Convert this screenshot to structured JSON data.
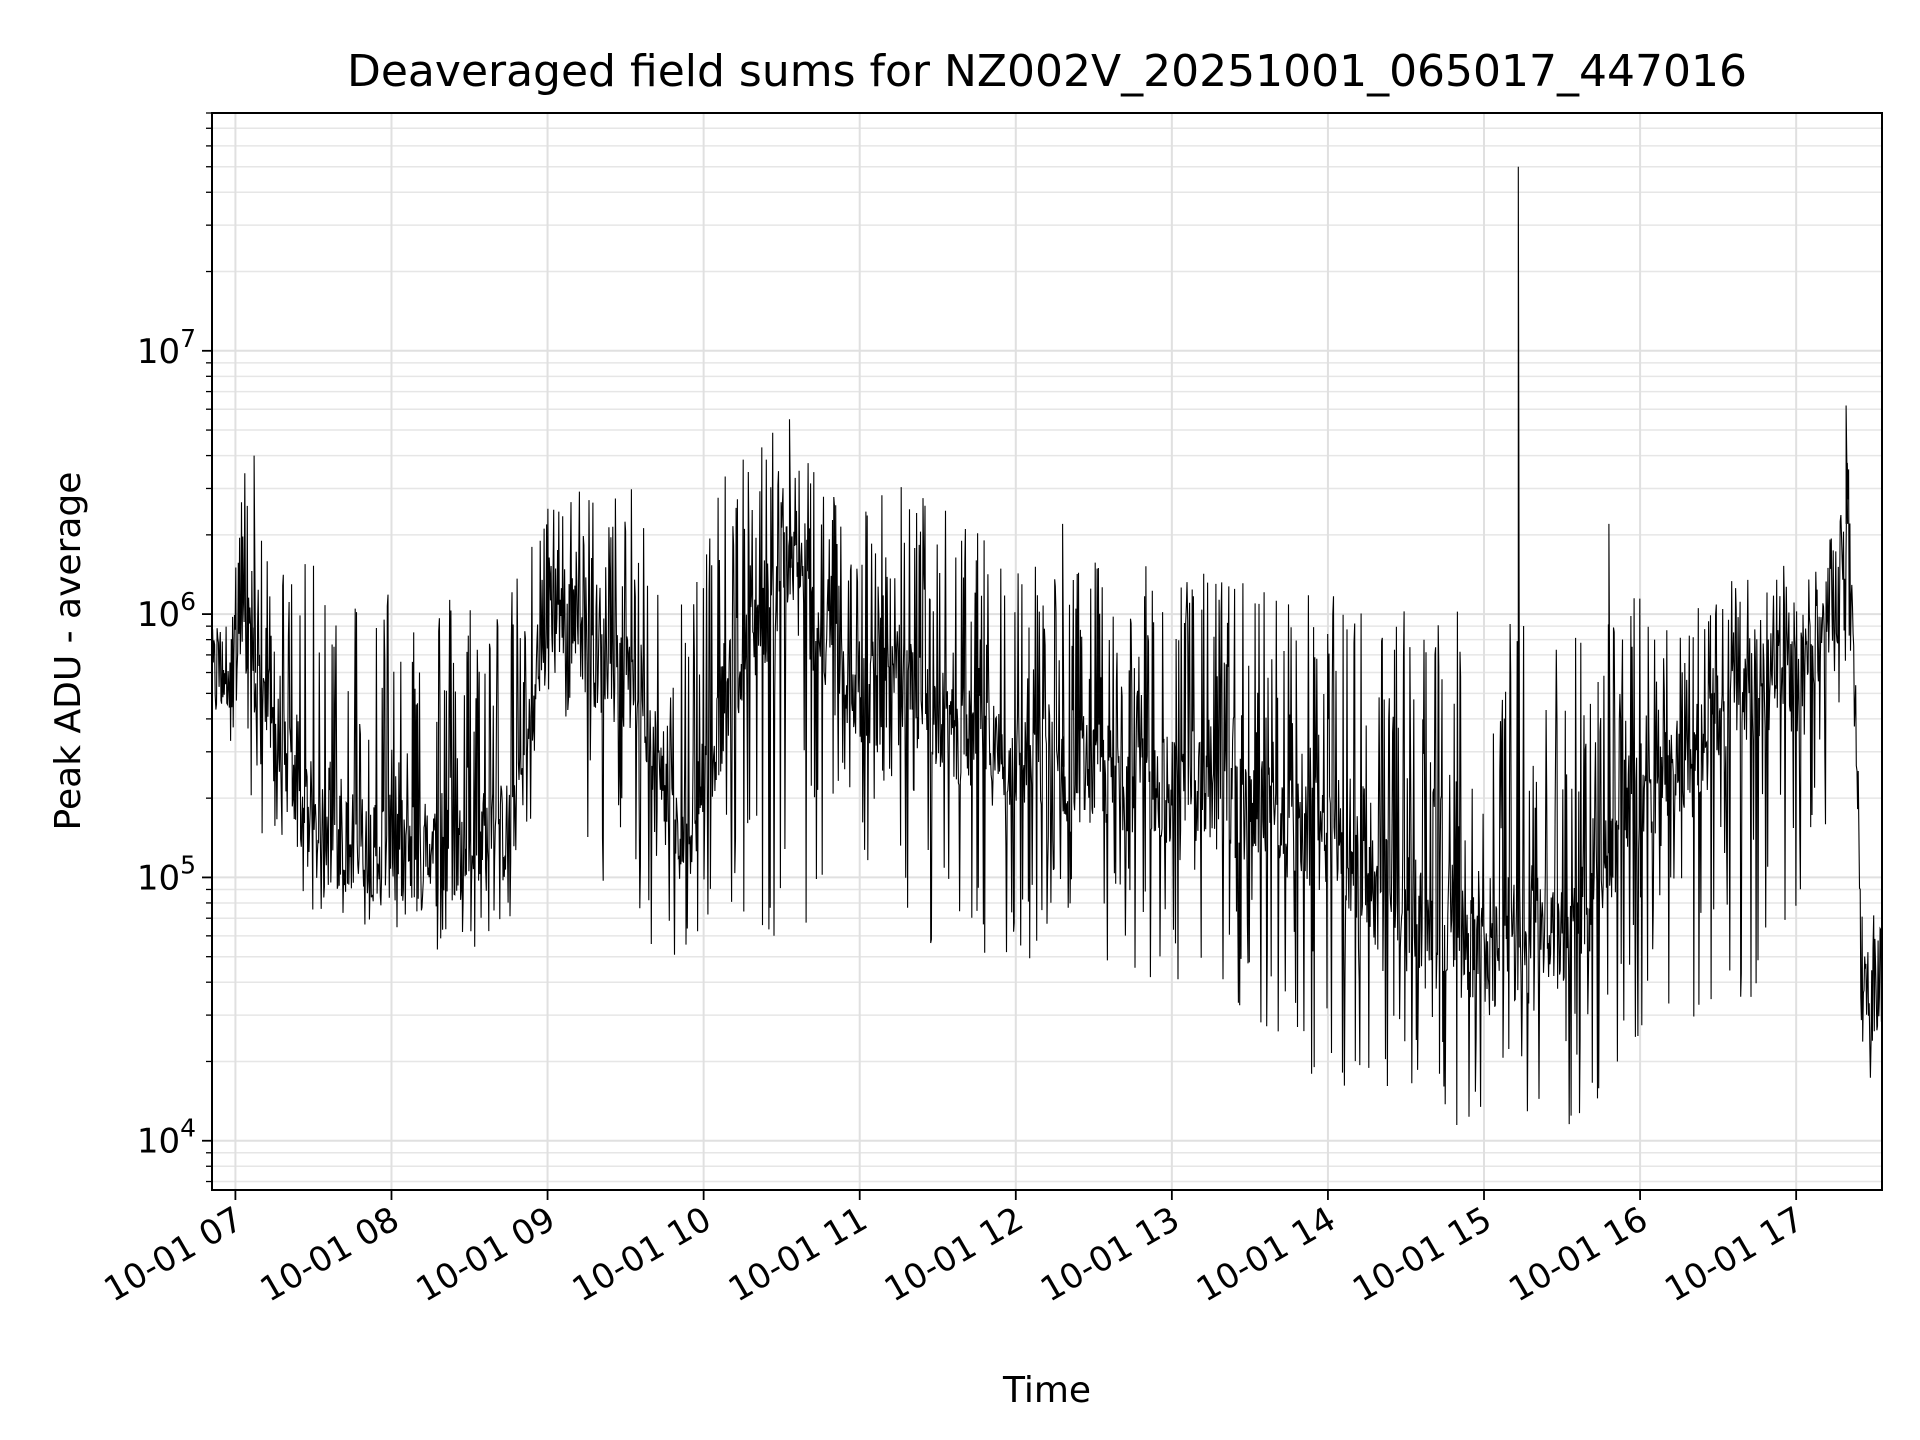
{
  "chart_data": {
    "type": "line",
    "title": "Deaveraged field sums for NZ002V_20251001_065017_447016",
    "xlabel": "Time",
    "ylabel": "Peak ADU - average",
    "yscale": "log",
    "ylim": [
      6500,
      80000000
    ],
    "xlim_hours": [
      6.85,
      17.55
    ],
    "grid": true,
    "x_ticks": [
      {
        "label": "10-01 07",
        "hour": 7
      },
      {
        "label": "10-01 08",
        "hour": 8
      },
      {
        "label": "10-01 09",
        "hour": 9
      },
      {
        "label": "10-01 10",
        "hour": 10
      },
      {
        "label": "10-01 11",
        "hour": 11
      },
      {
        "label": "10-01 12",
        "hour": 12
      },
      {
        "label": "10-01 13",
        "hour": 13
      },
      {
        "label": "10-01 14",
        "hour": 14
      },
      {
        "label": "10-01 15",
        "hour": 15
      },
      {
        "label": "10-01 16",
        "hour": 16
      },
      {
        "label": "10-01 17",
        "hour": 17
      }
    ],
    "y_ticks": [
      {
        "base": "10",
        "exp": "4",
        "value": 10000
      },
      {
        "base": "10",
        "exp": "5",
        "value": 100000
      },
      {
        "base": "10",
        "exp": "6",
        "value": 1000000
      },
      {
        "base": "10",
        "exp": "7",
        "value": 10000000
      }
    ],
    "series": [
      {
        "name": "field sums",
        "color": "#000000",
        "envelope": [
          {
            "hour": 6.85,
            "base": 550000,
            "high": 750000,
            "low": 450000
          },
          {
            "hour": 7.05,
            "base": 800000,
            "high": 4000000,
            "low": 260000
          },
          {
            "hour": 7.25,
            "base": 350000,
            "high": 1500000,
            "low": 100000
          },
          {
            "hour": 7.5,
            "base": 140000,
            "high": 1600000,
            "low": 75000
          },
          {
            "hour": 8.0,
            "base": 130000,
            "high": 1500000,
            "low": 60000
          },
          {
            "hour": 8.35,
            "base": 120000,
            "high": 1400000,
            "low": 50000
          },
          {
            "hour": 8.75,
            "base": 150000,
            "high": 1200000,
            "low": 55000
          },
          {
            "hour": 9.05,
            "base": 1200000,
            "high": 3200000,
            "low": 500000
          },
          {
            "hour": 9.3,
            "base": 700000,
            "high": 3000000,
            "low": 100000
          },
          {
            "hour": 9.6,
            "base": 500000,
            "high": 3000000,
            "low": 60000
          },
          {
            "hour": 9.85,
            "base": 120000,
            "high": 1500000,
            "low": 45000
          },
          {
            "hour": 10.2,
            "base": 600000,
            "high": 4000000,
            "low": 80000
          },
          {
            "hour": 10.55,
            "base": 1500000,
            "high": 5500000,
            "low": 45000
          },
          {
            "hour": 10.9,
            "base": 500000,
            "high": 3000000,
            "low": 60000
          },
          {
            "hour": 11.3,
            "base": 500000,
            "high": 3300000,
            "low": 60000
          },
          {
            "hour": 11.8,
            "base": 300000,
            "high": 2000000,
            "low": 40000
          },
          {
            "hour": 12.5,
            "base": 250000,
            "high": 1600000,
            "low": 40000
          },
          {
            "hour": 13.0,
            "base": 220000,
            "high": 1500000,
            "low": 35000
          },
          {
            "hour": 13.5,
            "base": 180000,
            "high": 1400000,
            "low": 30000
          },
          {
            "hour": 14.0,
            "base": 130000,
            "high": 1200000,
            "low": 13000
          },
          {
            "hour": 14.5,
            "base": 80000,
            "high": 1100000,
            "low": 12000
          },
          {
            "hour": 15.0,
            "base": 50000,
            "high": 1000000,
            "low": 11000
          },
          {
            "hour": 15.5,
            "base": 60000,
            "high": 1000000,
            "low": 10000
          },
          {
            "hour": 16.0,
            "base": 200000,
            "high": 1200000,
            "low": 20000
          },
          {
            "hour": 16.5,
            "base": 350000,
            "high": 1300000,
            "low": 30000
          },
          {
            "hour": 16.9,
            "base": 600000,
            "high": 1500000,
            "low": 40000
          },
          {
            "hour": 17.25,
            "base": 900000,
            "high": 2000000,
            "low": 200000
          },
          {
            "hour": 17.33,
            "base": 2500000,
            "high": 6200000,
            "low": 800000
          },
          {
            "hour": 17.38,
            "base": 400000,
            "high": 600000,
            "low": 300000
          },
          {
            "hour": 17.42,
            "base": 30000,
            "high": 90000,
            "low": 11000
          },
          {
            "hour": 17.55,
            "base": 45000,
            "high": 65000,
            "low": 25000
          }
        ],
        "spikes": [
          {
            "hour": 7.12,
            "value": 4000000
          },
          {
            "hour": 10.55,
            "value": 5500000
          },
          {
            "hour": 12.3,
            "value": 2200000
          },
          {
            "hour": 15.22,
            "value": 50000000
          },
          {
            "hour": 15.8,
            "value": 2200000
          },
          {
            "hour": 17.32,
            "value": 6200000
          }
        ]
      }
    ]
  }
}
